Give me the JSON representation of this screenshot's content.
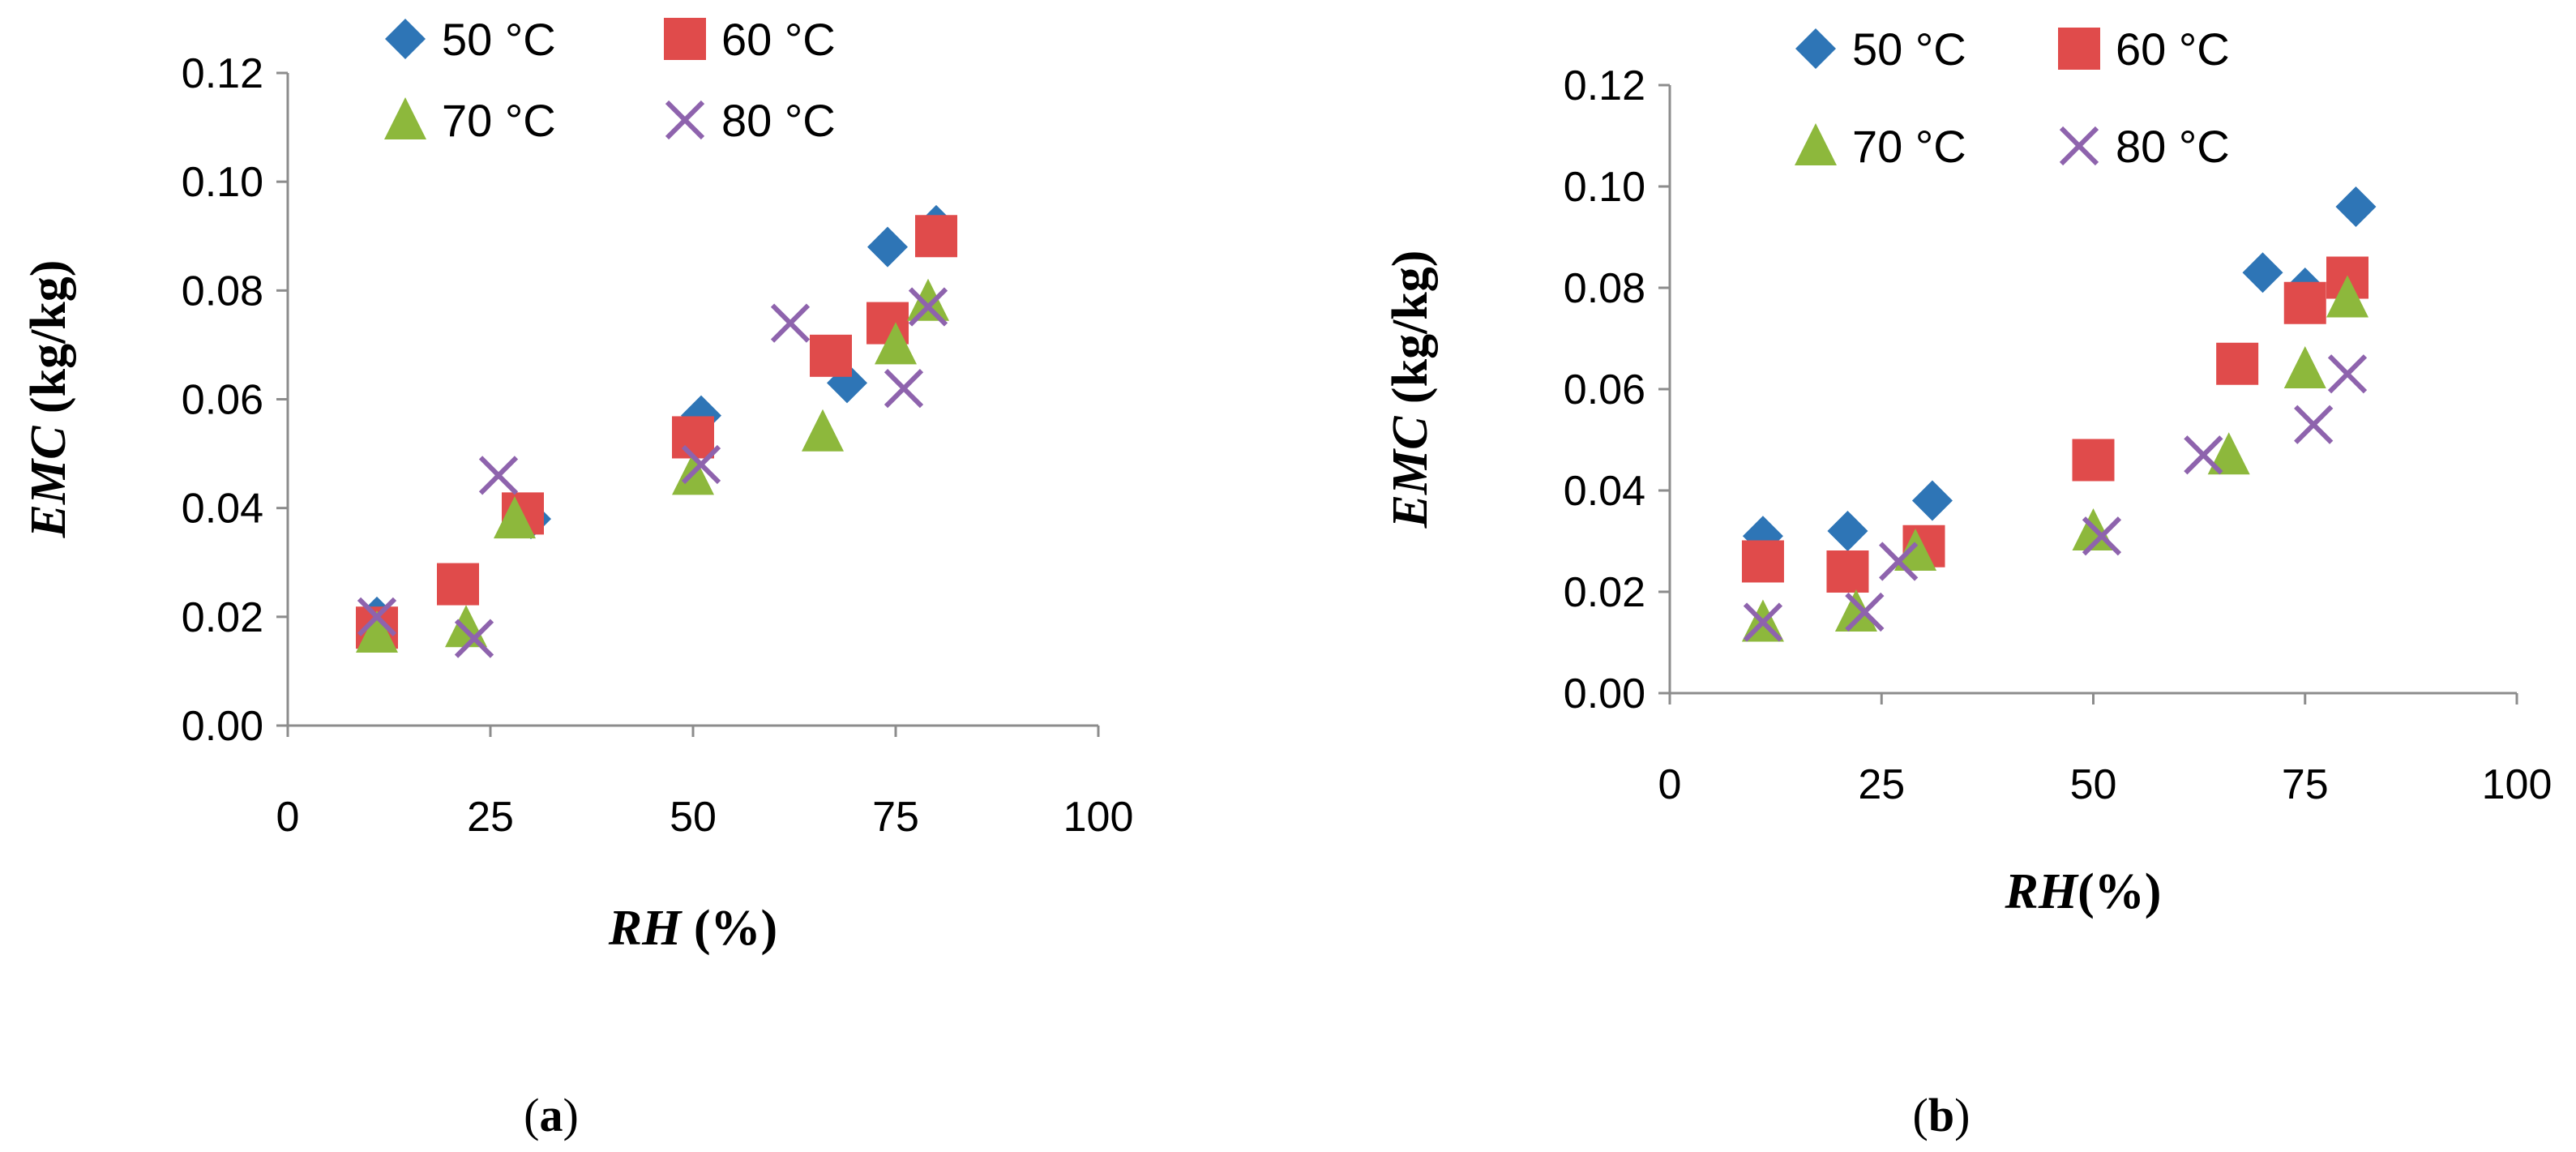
{
  "chart_data": [
    {
      "type": "scatter",
      "panel_label": "(a)",
      "xlabel": "RH (%)",
      "ylabel": "EMC (kg/kg)",
      "xlim": [
        0,
        100
      ],
      "ylim": [
        0,
        0.12
      ],
      "xticks": [
        "0",
        "25",
        "50",
        "75",
        "100"
      ],
      "yticks": [
        "0.00",
        "0.02",
        "0.04",
        "0.06",
        "0.08",
        "0.10",
        "0.12"
      ],
      "grid": false,
      "legend": "top",
      "series": [
        {
          "name": "50 °C",
          "marker": "diamond",
          "color": "#2E75B6",
          "points": [
            [
              11,
              0.02
            ],
            [
              30,
              0.038
            ],
            [
              51,
              0.057
            ],
            [
              69,
              0.063
            ],
            [
              74,
              0.088
            ],
            [
              80,
              0.092
            ]
          ]
        },
        {
          "name": "60 °C",
          "marker": "square",
          "color": "#E04B4B",
          "points": [
            [
              11,
              0.018
            ],
            [
              21,
              0.026
            ],
            [
              29,
              0.039
            ],
            [
              50,
              0.053
            ],
            [
              67,
              0.068
            ],
            [
              74,
              0.074
            ],
            [
              80,
              0.09
            ]
          ]
        },
        {
          "name": "70 °C",
          "marker": "triangle",
          "color": "#8DB83C",
          "points": [
            [
              11,
              0.017
            ],
            [
              22,
              0.018
            ],
            [
              28,
              0.038
            ],
            [
              50,
              0.046
            ],
            [
              66,
              0.054
            ],
            [
              75,
              0.07
            ],
            [
              79,
              0.078
            ]
          ]
        },
        {
          "name": "80 °C",
          "marker": "x",
          "color": "#8E63AD",
          "points": [
            [
              11,
              0.02
            ],
            [
              23,
              0.016
            ],
            [
              26,
              0.046
            ],
            [
              51,
              0.048
            ],
            [
              62,
              0.074
            ],
            [
              76,
              0.062
            ],
            [
              79,
              0.077
            ]
          ]
        }
      ]
    },
    {
      "type": "scatter",
      "panel_label": "(b)",
      "xlabel": "RH(%)",
      "ylabel": "EMC (kg/kg)",
      "xlim": [
        0,
        100
      ],
      "ylim": [
        0,
        0.12
      ],
      "xticks": [
        "0",
        "25",
        "50",
        "75",
        "100"
      ],
      "yticks": [
        "0.00",
        "0.02",
        "0.04",
        "0.06",
        "0.08",
        "0.10",
        "0.12"
      ],
      "grid": false,
      "legend": "top",
      "series": [
        {
          "name": "50 °C",
          "marker": "diamond",
          "color": "#2E75B6",
          "points": [
            [
              11,
              0.031
            ],
            [
              21,
              0.032
            ],
            [
              31,
              0.038
            ],
            [
              50,
              0.046
            ],
            [
              70,
              0.083
            ],
            [
              75,
              0.08
            ],
            [
              81,
              0.096
            ]
          ]
        },
        {
          "name": "60 °C",
          "marker": "square",
          "color": "#E04B4B",
          "points": [
            [
              11,
              0.026
            ],
            [
              21,
              0.024
            ],
            [
              30,
              0.029
            ],
            [
              50,
              0.046
            ],
            [
              67,
              0.065
            ],
            [
              75,
              0.077
            ],
            [
              80,
              0.082
            ]
          ]
        },
        {
          "name": "70 °C",
          "marker": "triangle",
          "color": "#8DB83C",
          "points": [
            [
              11,
              0.014
            ],
            [
              22,
              0.016
            ],
            [
              29,
              0.028
            ],
            [
              50,
              0.032
            ],
            [
              66,
              0.047
            ],
            [
              75,
              0.064
            ],
            [
              80,
              0.078
            ]
          ]
        },
        {
          "name": "80 °C",
          "marker": "x",
          "color": "#8E63AD",
          "points": [
            [
              11,
              0.014
            ],
            [
              23,
              0.016
            ],
            [
              27,
              0.026
            ],
            [
              51,
              0.031
            ],
            [
              63,
              0.047
            ],
            [
              76,
              0.053
            ],
            [
              80,
              0.063
            ]
          ]
        }
      ]
    }
  ]
}
